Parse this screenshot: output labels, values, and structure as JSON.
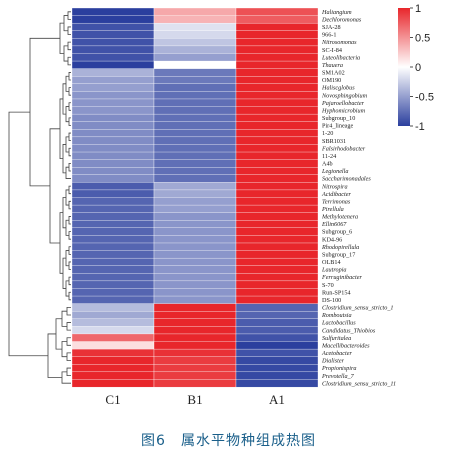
{
  "caption": "图6　属水平物种组成热图",
  "chart_data": {
    "type": "heatmap",
    "columns": [
      "C1",
      "B1",
      "A1"
    ],
    "color_scale": {
      "min": -1,
      "max": 1,
      "low": "#2b3f9e",
      "mid": "#ffffff",
      "high": "#e8262b"
    },
    "legend_ticks": [
      "1",
      "0.5",
      "0",
      "-0.5",
      "-1"
    ],
    "legend_tick_values": [
      1,
      0.5,
      0,
      -0.5,
      -1
    ],
    "rows": [
      {
        "label": "Haliangium",
        "italic": true,
        "values": [
          -1.0,
          0.4,
          0.8
        ]
      },
      {
        "label": "Dechloromonas",
        "italic": true,
        "values": [
          -1.0,
          0.35,
          0.75
        ]
      },
      {
        "label": "SJA-28",
        "italic": false,
        "values": [
          -0.9,
          -0.15,
          1.0
        ]
      },
      {
        "label": "966-1",
        "italic": false,
        "values": [
          -0.9,
          -0.2,
          1.0
        ]
      },
      {
        "label": "Nitrosomonas",
        "italic": true,
        "values": [
          -0.9,
          -0.3,
          1.0
        ]
      },
      {
        "label": "SC-I-84",
        "italic": false,
        "values": [
          -0.9,
          -0.4,
          1.0
        ]
      },
      {
        "label": "Luteolibacteria",
        "italic": true,
        "values": [
          -0.9,
          -0.5,
          1.0
        ]
      },
      {
        "label": "Thauera",
        "italic": true,
        "values": [
          -1.0,
          0.0,
          1.0
        ]
      },
      {
        "label": "SM1A02",
        "italic": false,
        "values": [
          -0.4,
          -0.7,
          1.0
        ]
      },
      {
        "label": "OM190",
        "italic": false,
        "values": [
          -0.5,
          -0.7,
          1.0
        ]
      },
      {
        "label": "Haliscglobus",
        "italic": true,
        "values": [
          -0.5,
          -0.75,
          1.0
        ]
      },
      {
        "label": "Novosphingobium",
        "italic": true,
        "values": [
          -0.55,
          -0.75,
          1.0
        ]
      },
      {
        "label": "Pajaroellobacter",
        "italic": true,
        "values": [
          -0.55,
          -0.75,
          1.0
        ]
      },
      {
        "label": "Hyphomicrobium",
        "italic": true,
        "values": [
          -0.55,
          -0.75,
          1.0
        ]
      },
      {
        "label": "Subgroup_10",
        "italic": false,
        "values": [
          -0.6,
          -0.75,
          1.0
        ]
      },
      {
        "label": "Pir4_lineage",
        "italic": false,
        "values": [
          -0.6,
          -0.75,
          1.0
        ]
      },
      {
        "label": "1-20",
        "italic": false,
        "values": [
          -0.6,
          -0.75,
          1.0
        ]
      },
      {
        "label": "SBR1031",
        "italic": false,
        "values": [
          -0.6,
          -0.75,
          1.0
        ]
      },
      {
        "label": "Falsirhodobacter",
        "italic": true,
        "values": [
          -0.6,
          -0.75,
          1.0
        ]
      },
      {
        "label": "11-24",
        "italic": false,
        "values": [
          -0.6,
          -0.75,
          1.0
        ]
      },
      {
        "label": "A4b",
        "italic": false,
        "values": [
          -0.6,
          -0.75,
          1.0
        ]
      },
      {
        "label": "Legionella",
        "italic": true,
        "values": [
          -0.6,
          -0.75,
          1.0
        ]
      },
      {
        "label": "Saccharimonadales",
        "italic": true,
        "values": [
          -0.6,
          -0.75,
          1.0
        ]
      },
      {
        "label": "Nitrospira",
        "italic": true,
        "values": [
          -0.85,
          -0.45,
          1.0
        ]
      },
      {
        "label": "Acidibacter",
        "italic": true,
        "values": [
          -0.85,
          -0.45,
          1.0
        ]
      },
      {
        "label": "Terrimonas",
        "italic": true,
        "values": [
          -0.8,
          -0.5,
          1.0
        ]
      },
      {
        "label": "Pirellula",
        "italic": true,
        "values": [
          -0.8,
          -0.5,
          1.0
        ]
      },
      {
        "label": "Methylotenera",
        "italic": true,
        "values": [
          -0.8,
          -0.55,
          1.0
        ]
      },
      {
        "label": "Ellin6067",
        "italic": true,
        "values": [
          -0.8,
          -0.55,
          1.0
        ]
      },
      {
        "label": "Subgroup_6",
        "italic": false,
        "values": [
          -0.8,
          -0.55,
          1.0
        ]
      },
      {
        "label": "KD4-96",
        "italic": false,
        "values": [
          -0.8,
          -0.55,
          1.0
        ]
      },
      {
        "label": "Rhodopirellula",
        "italic": true,
        "values": [
          -0.8,
          -0.55,
          1.0
        ]
      },
      {
        "label": "Subgroup_17",
        "italic": false,
        "values": [
          -0.8,
          -0.55,
          1.0
        ]
      },
      {
        "label": "OLB14",
        "italic": false,
        "values": [
          -0.8,
          -0.55,
          1.0
        ]
      },
      {
        "label": "Lautropia",
        "italic": true,
        "values": [
          -0.8,
          -0.55,
          1.0
        ]
      },
      {
        "label": "Ferruginibacter",
        "italic": true,
        "values": [
          -0.8,
          -0.55,
          1.0
        ]
      },
      {
        "label": "S-70",
        "italic": false,
        "values": [
          -0.8,
          -0.55,
          1.0
        ]
      },
      {
        "label": "Run-SP154",
        "italic": false,
        "values": [
          -0.8,
          -0.55,
          1.0
        ]
      },
      {
        "label": "DS-100",
        "italic": false,
        "values": [
          -0.8,
          -0.55,
          1.0
        ]
      },
      {
        "label": "Clostridium_sensu_stricto_1",
        "italic": true,
        "values": [
          -0.35,
          1.0,
          -0.8
        ]
      },
      {
        "label": "Romboutsia",
        "italic": true,
        "values": [
          -0.45,
          1.0,
          -0.8
        ]
      },
      {
        "label": "Lactobacillus",
        "italic": true,
        "values": [
          -0.35,
          1.0,
          -0.85
        ]
      },
      {
        "label": "Candidatus_Thiobios",
        "italic": true,
        "values": [
          -0.2,
          1.0,
          -0.85
        ]
      },
      {
        "label": "Sulfuritalea",
        "italic": true,
        "values": [
          0.7,
          1.0,
          -0.9
        ]
      },
      {
        "label": "Macellibacteroides",
        "italic": true,
        "values": [
          0.15,
          1.0,
          -1.0
        ]
      },
      {
        "label": "Acetobacter",
        "italic": true,
        "values": [
          0.95,
          0.95,
          -0.9
        ]
      },
      {
        "label": "Dialister",
        "italic": true,
        "values": [
          1.0,
          0.9,
          -0.95
        ]
      },
      {
        "label": "Propionispira",
        "italic": true,
        "values": [
          1.0,
          0.9,
          -0.95
        ]
      },
      {
        "label": "Prevotella_7",
        "italic": true,
        "values": [
          1.0,
          0.9,
          -0.95
        ]
      },
      {
        "label": "Clostridium_sensu_stricto_11",
        "italic": true,
        "values": [
          1.0,
          0.9,
          -0.95
        ]
      }
    ]
  }
}
